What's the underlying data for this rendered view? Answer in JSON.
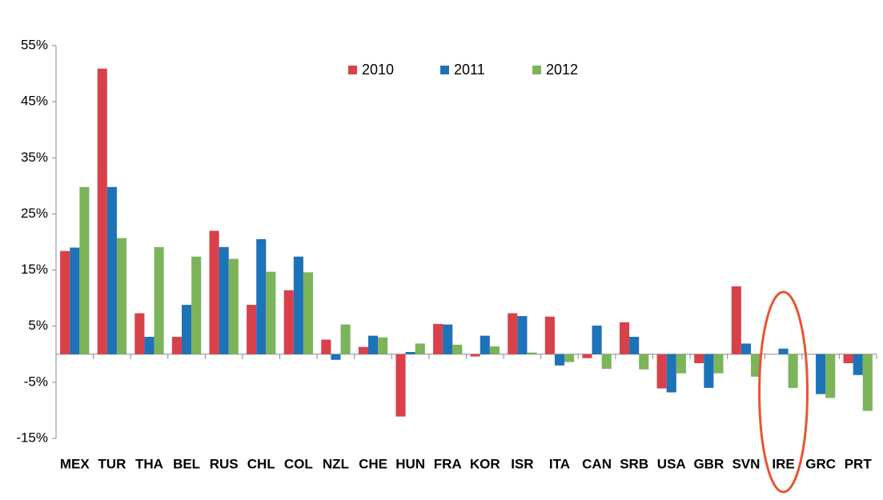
{
  "chart_data": {
    "type": "bar",
    "categories": [
      "MEX",
      "TUR",
      "THA",
      "BEL",
      "RUS",
      "CHL",
      "COL",
      "NZL",
      "CHE",
      "HUN",
      "FRA",
      "KOR",
      "ISR",
      "ITA",
      "CAN",
      "SRB",
      "USA",
      "GBR",
      "SVN",
      "IRE",
      "GRC",
      "PRT"
    ],
    "series": [
      {
        "name": "2010",
        "color": "#d9414a",
        "values": [
          18.4,
          50.9,
          7.3,
          3.1,
          22.0,
          8.8,
          11.4,
          2.6,
          1.3,
          -11.1,
          5.4,
          -0.4,
          7.3,
          6.7,
          -0.7,
          5.7,
          -6.1,
          -1.6,
          12.1,
          null,
          null,
          -1.6
        ]
      },
      {
        "name": "2011",
        "color": "#1d72b8",
        "values": [
          19.0,
          29.8,
          3.1,
          8.8,
          19.1,
          20.5,
          17.4,
          -1.0,
          3.3,
          0.4,
          5.3,
          3.3,
          6.8,
          -2.0,
          5.1,
          3.1,
          -6.8,
          -6.0,
          1.9,
          1.0,
          -7.1,
          -3.7
        ]
      },
      {
        "name": "2012",
        "color": "#7cb45c",
        "values": [
          29.8,
          20.7,
          19.1,
          17.4,
          17.0,
          14.7,
          14.6,
          5.3,
          3.0,
          1.9,
          1.7,
          1.4,
          0.3,
          -1.4,
          -2.6,
          -2.7,
          -3.4,
          -3.4,
          -4.0,
          -6.0,
          -7.8,
          -10.1
        ]
      }
    ],
    "ylim": [
      -15,
      55
    ],
    "yticks": [
      {
        "value": -15,
        "label": "-15%"
      },
      {
        "value": -5,
        "label": "-5%"
      },
      {
        "value": 5,
        "label": "5%"
      },
      {
        "value": 15,
        "label": "15%"
      },
      {
        "value": 25,
        "label": "25%"
      },
      {
        "value": 35,
        "label": "35%"
      },
      {
        "value": 45,
        "label": "45%"
      },
      {
        "value": 55,
        "label": "55%"
      }
    ],
    "grid": false
  }
}
